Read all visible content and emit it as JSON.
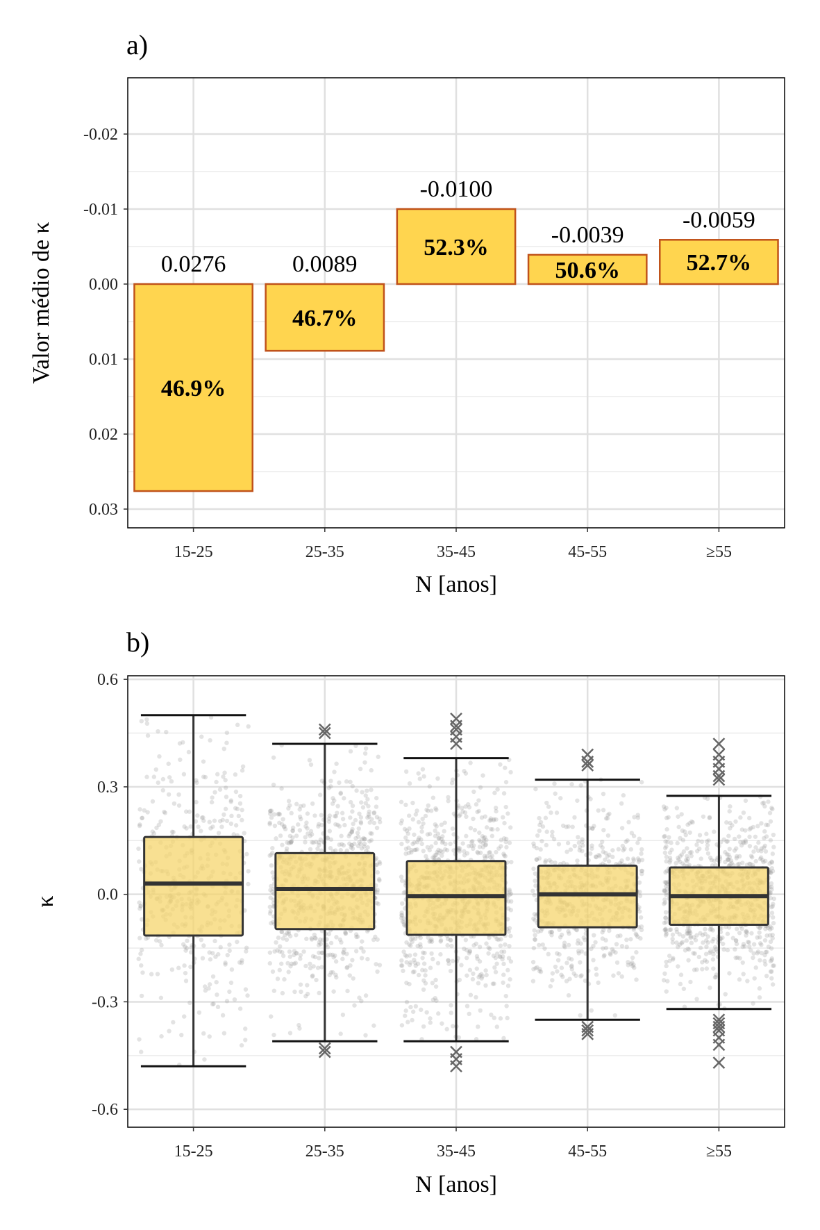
{
  "chart_data": [
    {
      "panel_label": "a)",
      "type": "bar",
      "categories": [
        "15-25",
        "25-35",
        "35-45",
        "45-55",
        "≥55"
      ],
      "values": [
        0.0276,
        0.0089,
        -0.01,
        -0.0039,
        -0.0059
      ],
      "value_labels": [
        "0.0276",
        "0.0089",
        "-0.0100",
        "-0.0039",
        "-0.0059"
      ],
      "percent_labels": [
        "46.9%",
        "46.7%",
        "52.3%",
        "50.6%",
        "52.7%"
      ],
      "xlabel": "N [anos]",
      "ylabel": "Valor médio de κ",
      "y_reversed": true,
      "ylim": [
        -0.0275,
        0.0325
      ],
      "yticks": [
        -0.02,
        -0.01,
        0.0,
        0.01,
        0.02,
        0.03
      ],
      "ytick_labels": [
        "-0.02",
        "-0.01",
        "0.00",
        "0.01",
        "0.02",
        "0.03"
      ],
      "grid": true,
      "colors": {
        "fill": "#FFD54F",
        "border": "#C0521A"
      }
    },
    {
      "panel_label": "b)",
      "type": "box",
      "categories": [
        "15-25",
        "25-35",
        "35-45",
        "45-55",
        "≥55"
      ],
      "boxes": [
        {
          "whisker_low": -0.48,
          "q1": -0.115,
          "median": 0.03,
          "q3": 0.16,
          "whisker_high": 0.5,
          "outliers": []
        },
        {
          "whisker_low": -0.41,
          "q1": -0.097,
          "median": 0.015,
          "q3": 0.115,
          "whisker_high": 0.42,
          "outliers": [
            0.46,
            0.45,
            -0.43,
            -0.44
          ]
        },
        {
          "whisker_low": -0.41,
          "q1": -0.113,
          "median": -0.005,
          "q3": 0.093,
          "whisker_high": 0.38,
          "outliers": [
            0.49,
            0.47,
            0.46,
            0.44,
            0.42,
            -0.44,
            -0.46,
            -0.48
          ]
        },
        {
          "whisker_low": -0.35,
          "q1": -0.092,
          "median": 0.0,
          "q3": 0.08,
          "whisker_high": 0.32,
          "outliers": [
            0.39,
            0.37,
            0.36,
            -0.37,
            -0.38,
            -0.39
          ]
        },
        {
          "whisker_low": -0.32,
          "q1": -0.085,
          "median": -0.005,
          "q3": 0.075,
          "whisker_high": 0.275,
          "outliers": [
            0.42,
            0.39,
            0.37,
            0.35,
            0.33,
            0.32,
            -0.35,
            -0.36,
            -0.37,
            -0.38,
            -0.4,
            -0.42,
            -0.47
          ]
        }
      ],
      "xlabel": "N [anos]",
      "ylabel": "κ",
      "ylim": [
        -0.65,
        0.61
      ],
      "yticks": [
        0.6,
        0.3,
        0.0,
        -0.3,
        -0.6
      ],
      "ytick_labels": [
        "0.6",
        "0.3",
        "0.0",
        "-0.3",
        "-0.6"
      ],
      "grid": true,
      "jitter_points": "semi-transparent grey",
      "colors": {
        "box_fill": "#F5D56E",
        "box_border": "#333333",
        "points": "#9a9a9a",
        "outliers": "#666666"
      }
    }
  ]
}
